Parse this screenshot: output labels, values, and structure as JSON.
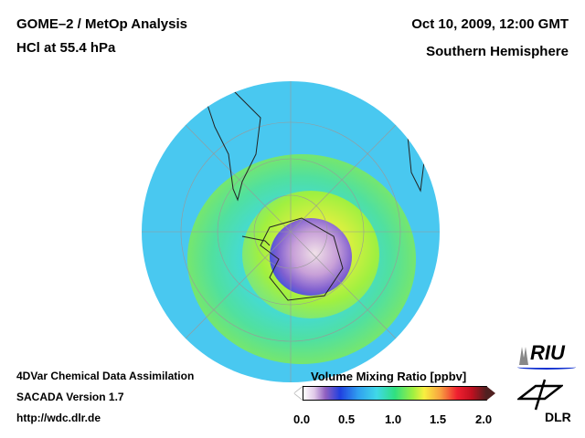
{
  "header": {
    "title_line1": "GOME–2 / MetOp Analysis",
    "title_line2": "HCl at 55.4 hPa",
    "date": "Oct 10, 2009, 12:00 GMT",
    "region": "Southern Hemisphere"
  },
  "footer": {
    "line1": "4DVar Chemical Data Assimilation",
    "line2": "SACADA Version 1.7",
    "line3": "http://wdc.dlr.de"
  },
  "colorbar": {
    "title": "Volume Mixing Ratio [ppbv]",
    "ticks": [
      "0.0",
      "0.5",
      "1.0",
      "1.5",
      "2.0"
    ],
    "range": [
      0.0,
      2.0
    ]
  },
  "logos": {
    "riu": "RIU",
    "dlr": "DLR"
  }
}
